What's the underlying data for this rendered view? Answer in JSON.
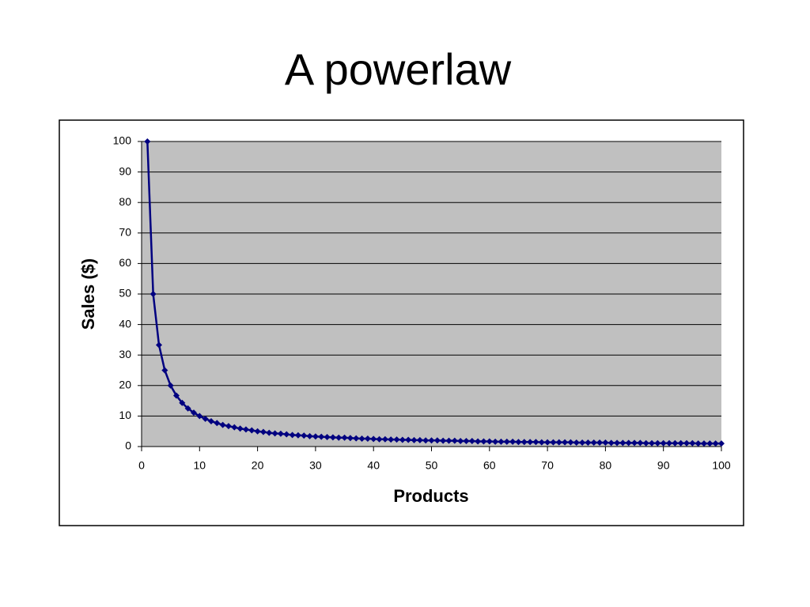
{
  "chart_data": {
    "type": "line",
    "title": "A powerlaw",
    "x_label": "Products",
    "y_label": "Sales ($)",
    "x": [
      1,
      2,
      3,
      4,
      5,
      6,
      7,
      8,
      9,
      10,
      11,
      12,
      13,
      14,
      15,
      16,
      17,
      18,
      19,
      20,
      21,
      22,
      23,
      24,
      25,
      26,
      27,
      28,
      29,
      30,
      31,
      32,
      33,
      34,
      35,
      36,
      37,
      38,
      39,
      40,
      41,
      42,
      43,
      44,
      45,
      46,
      47,
      48,
      49,
      50,
      51,
      52,
      53,
      54,
      55,
      56,
      57,
      58,
      59,
      60,
      61,
      62,
      63,
      64,
      65,
      66,
      67,
      68,
      69,
      70,
      71,
      72,
      73,
      74,
      75,
      76,
      77,
      78,
      79,
      80,
      81,
      82,
      83,
      84,
      85,
      86,
      87,
      88,
      89,
      90,
      91,
      92,
      93,
      94,
      95,
      96,
      97,
      98,
      99,
      100
    ],
    "values": [
      100,
      50,
      33.3,
      25,
      20,
      16.7,
      14.3,
      12.5,
      11.1,
      10,
      9.1,
      8.3,
      7.7,
      7.1,
      6.7,
      6.3,
      5.9,
      5.6,
      5.3,
      5,
      4.8,
      4.5,
      4.3,
      4.2,
      4,
      3.8,
      3.7,
      3.6,
      3.4,
      3.3,
      3.2,
      3.1,
      3,
      2.9,
      2.9,
      2.8,
      2.7,
      2.6,
      2.6,
      2.5,
      2.4,
      2.4,
      2.3,
      2.3,
      2.2,
      2.2,
      2.1,
      2.1,
      2,
      2,
      2,
      1.9,
      1.9,
      1.9,
      1.8,
      1.8,
      1.8,
      1.7,
      1.7,
      1.7,
      1.6,
      1.6,
      1.6,
      1.6,
      1.5,
      1.5,
      1.5,
      1.5,
      1.4,
      1.4,
      1.4,
      1.4,
      1.4,
      1.4,
      1.3,
      1.3,
      1.3,
      1.3,
      1.3,
      1.3,
      1.2,
      1.2,
      1.2,
      1.2,
      1.2,
      1.2,
      1.1,
      1.1,
      1.1,
      1.1,
      1.1,
      1.1,
      1.1,
      1.1,
      1.1,
      1,
      1,
      1,
      1,
      1
    ],
    "color": "#000080",
    "marker": "diamond",
    "plot_background": "#c0c0c0",
    "xlim": [
      0,
      100
    ],
    "xticks": [
      0,
      10,
      20,
      30,
      40,
      50,
      60,
      70,
      80,
      90,
      100
    ],
    "ylim": [
      0,
      100
    ],
    "yticks": [
      0,
      10,
      20,
      30,
      40,
      50,
      60,
      70,
      80,
      90,
      100
    ],
    "grid": true
  }
}
